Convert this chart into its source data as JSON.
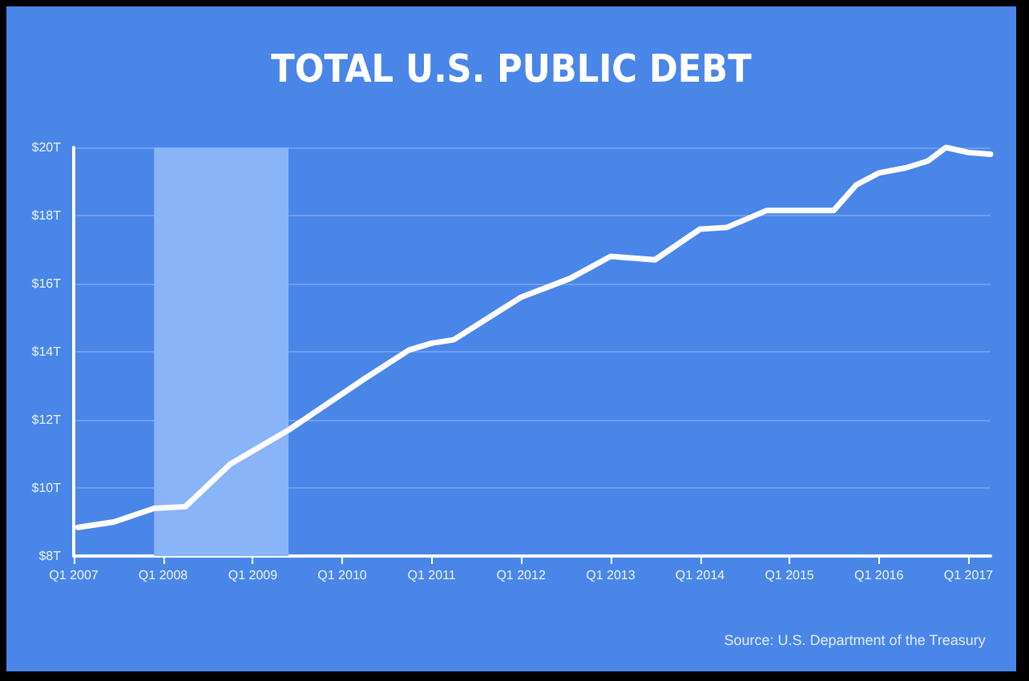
{
  "chart_data": {
    "type": "line",
    "title": "TOTAL U.S. PUBLIC DEBT",
    "x": [
      "2007-01-19",
      "2007-06-14",
      "2007-11-25",
      "2008-04-01",
      "2008-10-01",
      "2009-05-27",
      "2010-04-01",
      "2010-10-01",
      "2011-01-01",
      "2011-04-01",
      "2012-01-01",
      "2012-07-19",
      "2013-01-01",
      "2013-07-01",
      "2014-01-01",
      "2014-04-20",
      "2014-10-01",
      "2015-07-01",
      "2015-10-01",
      "2016-01-01",
      "2016-04-20",
      "2016-07-19",
      "2016-10-01",
      "2017-01-01",
      "2017-04-01"
    ],
    "series": [
      {
        "color": "#ffffff",
        "values": [
          8.84,
          9.0,
          9.4,
          9.45,
          10.7,
          11.7,
          13.2,
          14.05,
          14.25,
          14.35,
          15.6,
          16.15,
          16.8,
          16.7,
          17.6,
          17.65,
          18.15,
          18.15,
          18.9,
          19.25,
          19.4,
          19.6,
          20.0,
          19.85,
          19.8
        ]
      }
    ],
    "xlim": [
      "2007-01-01",
      "2017-04-01"
    ],
    "xticks": [
      {
        "value": "2007-01-01",
        "label": "Q1 2007"
      },
      {
        "value": "2008-01-01",
        "label": "Q1 2008"
      },
      {
        "value": "2009-01-01",
        "label": "Q1 2009"
      },
      {
        "value": "2010-01-01",
        "label": "Q1 2010"
      },
      {
        "value": "2011-01-01",
        "label": "Q1 2011"
      },
      {
        "value": "2012-01-01",
        "label": "Q1 2012"
      },
      {
        "value": "2013-01-01",
        "label": "Q1 2013"
      },
      {
        "value": "2014-01-01",
        "label": "Q1 2014"
      },
      {
        "value": "2015-01-01",
        "label": "Q1 2015"
      },
      {
        "value": "2016-01-01",
        "label": "Q1 2016"
      },
      {
        "value": "2017-01-01",
        "label": "Q1 2017"
      }
    ],
    "ylim": [
      8,
      20
    ],
    "yticks": [
      {
        "value": 8,
        "label": "$8T"
      },
      {
        "value": 10,
        "label": "$10T"
      },
      {
        "value": 12,
        "label": "$12T"
      },
      {
        "value": 14,
        "label": "$14T"
      },
      {
        "value": 16,
        "label": "$16T"
      },
      {
        "value": 18,
        "label": "$18T"
      },
      {
        "value": 20,
        "label": "$20T"
      }
    ],
    "bands": [
      {
        "axis": "x",
        "from": "2007-11-25",
        "to": "2009-05-27",
        "color": "#8ab4f8"
      }
    ],
    "grid": "y",
    "marker": "none",
    "line_style": "solid",
    "annotations": [
      "Source: U.S. Department of the Treasury"
    ]
  }
}
